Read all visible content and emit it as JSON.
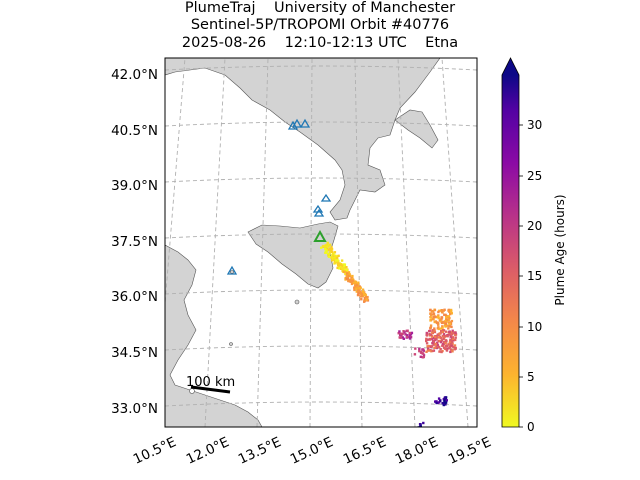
{
  "title": {
    "line1": "PlumeTraj    University of Manchester",
    "line2": "Sentinel-5P/TROPOMI Orbit #40776",
    "line3": "2025-08-26    12:10-12:13 UTC    Etna"
  },
  "map": {
    "lat_labels": [
      "42.0°N",
      "40.5°N",
      "39.0°N",
      "37.5°N",
      "36.0°N",
      "34.5°N",
      "33.0°N"
    ],
    "lon_labels": [
      "10.5°E",
      "12.0°E",
      "13.5°E",
      "15.0°E",
      "16.5°E",
      "18.0°E",
      "19.5°E"
    ],
    "scale_bar_label": "100 km",
    "land_color": "#d3d3d3",
    "sea_color": "#ffffff",
    "volcano_marker_color": "#2ca02c",
    "other_volcano_color": "#1f77b4"
  },
  "colorbar": {
    "label": "Plume Age (hours)",
    "ticks": [
      "0",
      "5",
      "10",
      "15",
      "20",
      "25",
      "30"
    ],
    "colormap": "plasma_r",
    "extend": "max"
  }
}
